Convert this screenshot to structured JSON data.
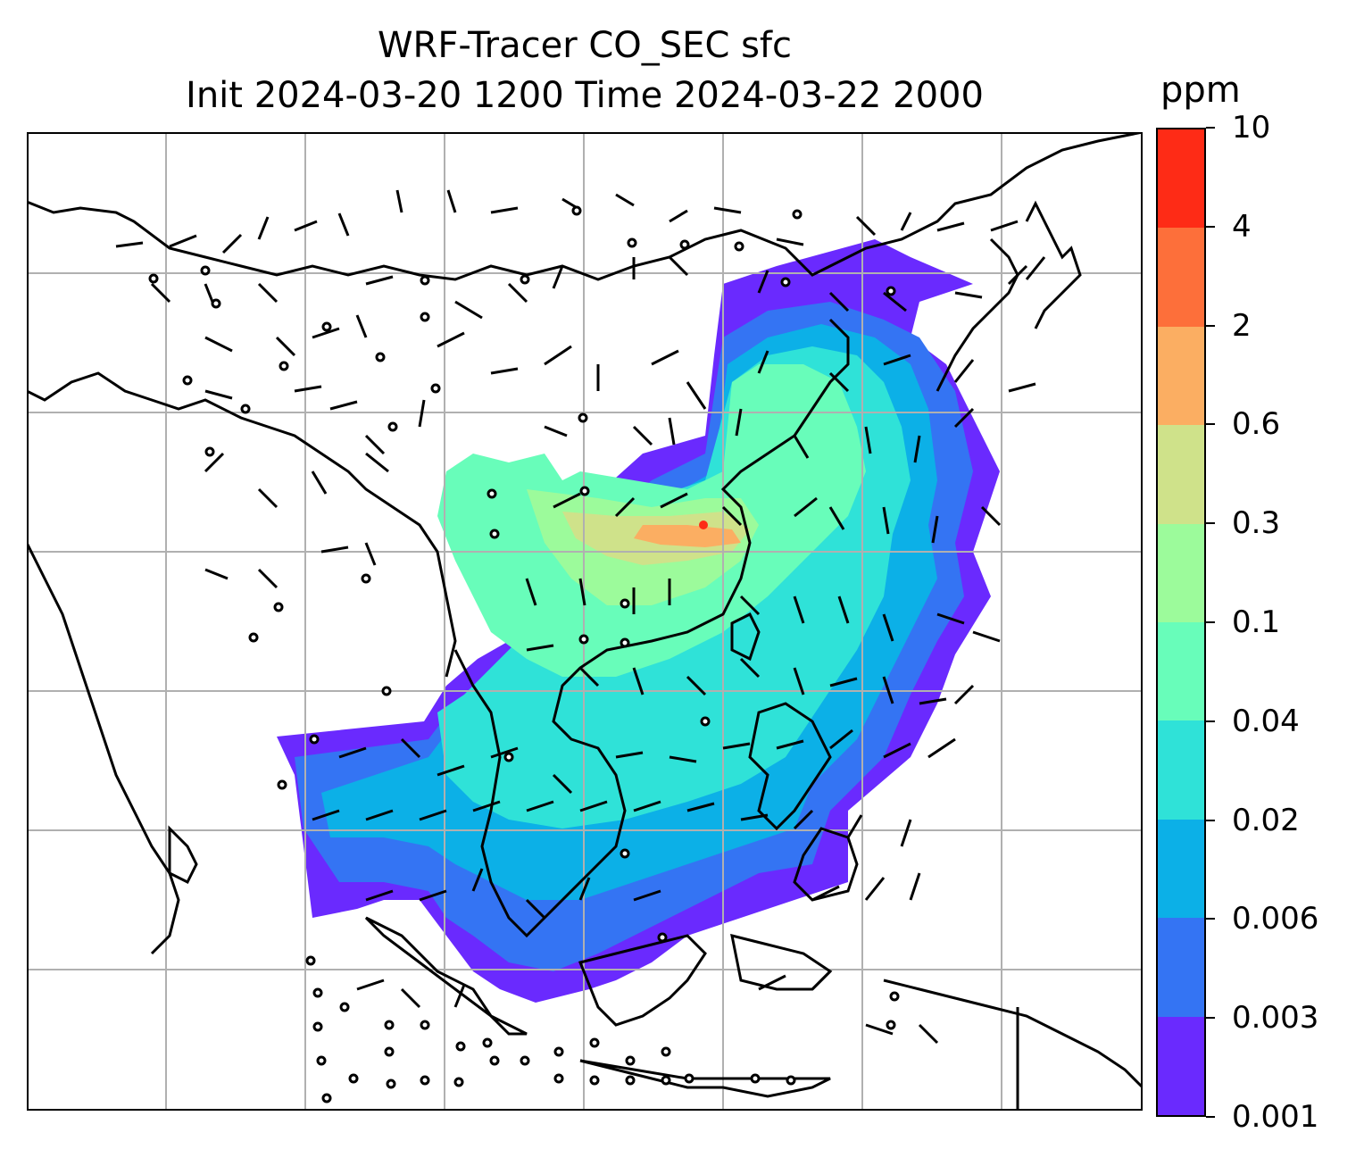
{
  "title": {
    "line1": "WRF-Tracer CO_SEC sfc",
    "line2": "Init 2024-03-20 1200 Time 2024-03-22 2000"
  },
  "map": {
    "gridlines": true,
    "coastlines": true,
    "overlay": "wind barbs"
  },
  "colorbar": {
    "unit": "ppm",
    "levels": [
      "0.001",
      "0.003",
      "0.006",
      "0.02",
      "0.04",
      "0.1",
      "0.3",
      "0.6",
      "2",
      "4",
      "10"
    ],
    "colors": [
      "#6a2afe",
      "#3474f3",
      "#0cb0e7",
      "#2fe2d8",
      "#68fdba",
      "#9cfb9b",
      "#cfe28a",
      "#fbae62",
      "#fd6f3a",
      "#fe2b16"
    ]
  }
}
